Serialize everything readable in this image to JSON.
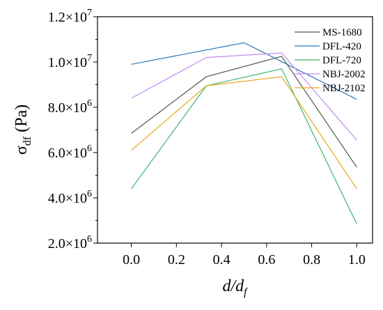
{
  "chart_data": {
    "type": "line",
    "title": "",
    "xlabel": "d/df",
    "ylabel": "σdf (Pa)",
    "xlim": [
      -0.15,
      1.07
    ],
    "ylim": [
      2000000,
      12000000
    ],
    "grid": false,
    "legend_position": "top-right",
    "x_ticks": [
      {
        "value": 0.0,
        "label": "0.0"
      },
      {
        "value": 0.2,
        "label": "0.2"
      },
      {
        "value": 0.4,
        "label": "0.4"
      },
      {
        "value": 0.6,
        "label": "0.6"
      },
      {
        "value": 0.8,
        "label": "0.8"
      },
      {
        "value": 1.0,
        "label": "1.0"
      }
    ],
    "y_ticks": [
      {
        "value": 2000000,
        "mantissa": "2.0",
        "exp": "6"
      },
      {
        "value": 4000000,
        "mantissa": "4.0",
        "exp": "6"
      },
      {
        "value": 6000000,
        "mantissa": "6.0",
        "exp": "6"
      },
      {
        "value": 8000000,
        "mantissa": "8.0",
        "exp": "6"
      },
      {
        "value": 10000000,
        "mantissa": "1.0",
        "exp": "7"
      },
      {
        "value": 12000000,
        "mantissa": "1.2",
        "exp": "7"
      }
    ],
    "series": [
      {
        "name": "MS-1680",
        "color": "#555555",
        "x": [
          0,
          0.333,
          0.667,
          1.0
        ],
        "y": [
          6850000,
          9350000,
          10250000,
          5350000
        ]
      },
      {
        "name": "DFL-420",
        "color": "#2e75b6",
        "x": [
          0,
          0.5,
          1.0
        ],
        "y": [
          9900000,
          10850000,
          8350000
        ]
      },
      {
        "name": "DFL-720",
        "color": "#3cb371",
        "x": [
          0,
          0.333,
          0.667,
          1.0
        ],
        "y": [
          4400000,
          8950000,
          9700000,
          2850000
        ]
      },
      {
        "name": "NBJ-2002",
        "color": "#c38bef",
        "x": [
          0,
          0.333,
          0.667,
          1.0
        ],
        "y": [
          8400000,
          10200000,
          10400000,
          6550000
        ]
      },
      {
        "name": "NBJ-2102",
        "color": "#e6a817",
        "x": [
          0,
          0.333,
          0.667,
          1.0
        ],
        "y": [
          6100000,
          8950000,
          9350000,
          4400000
        ]
      }
    ]
  }
}
